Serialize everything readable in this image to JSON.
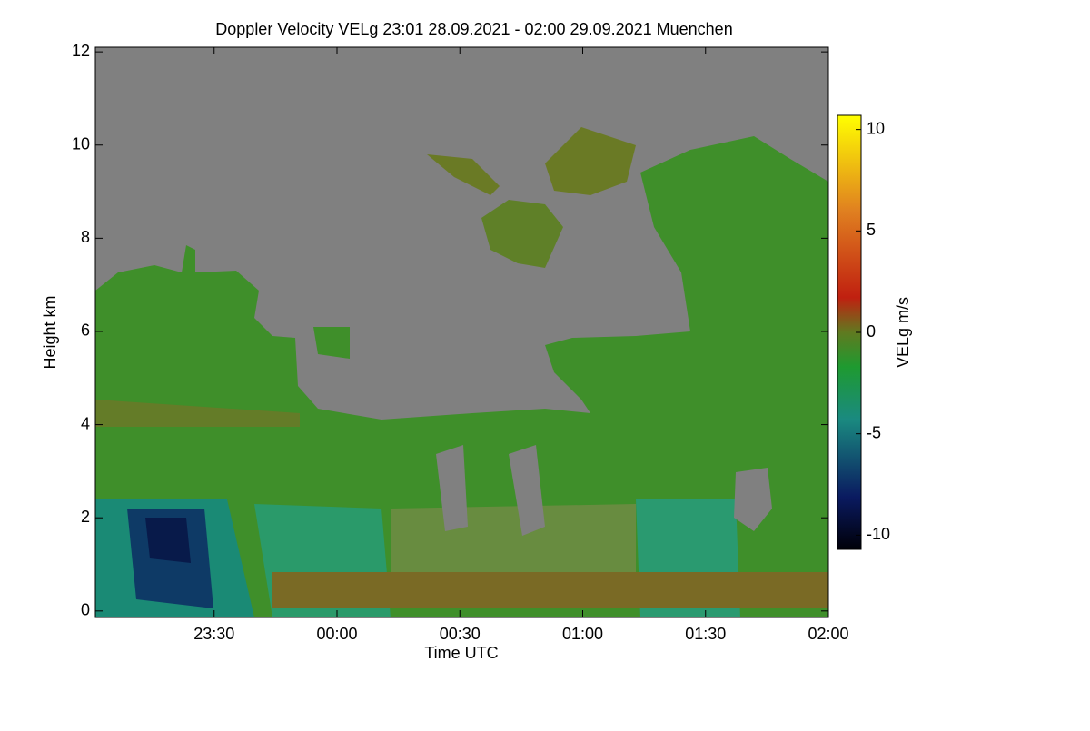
{
  "chart_data": {
    "type": "heatmap",
    "title": "Doppler Velocity VELg   23:01 28.09.2021 - 02:00 29.09.2021 Muenchen",
    "x_label": "Time UTC",
    "y_label": "Height km",
    "colorbar_label": "VELg m/s",
    "xlim": [
      1,
      180
    ],
    "xticks": [
      {
        "value": 30,
        "label": "23:30"
      },
      {
        "value": 60,
        "label": "00:00"
      },
      {
        "value": 90,
        "label": "00:30"
      },
      {
        "value": 120,
        "label": "01:00"
      },
      {
        "value": 150,
        "label": "01:30"
      },
      {
        "value": 180,
        "label": "02:00"
      }
    ],
    "ylim": [
      -0.14,
      12.1
    ],
    "yticks": [
      0,
      2,
      4,
      6,
      8,
      10,
      12
    ],
    "clim": [
      -10.7,
      10.7
    ],
    "cticks": [
      10,
      5,
      0,
      -5,
      -10
    ]
  }
}
